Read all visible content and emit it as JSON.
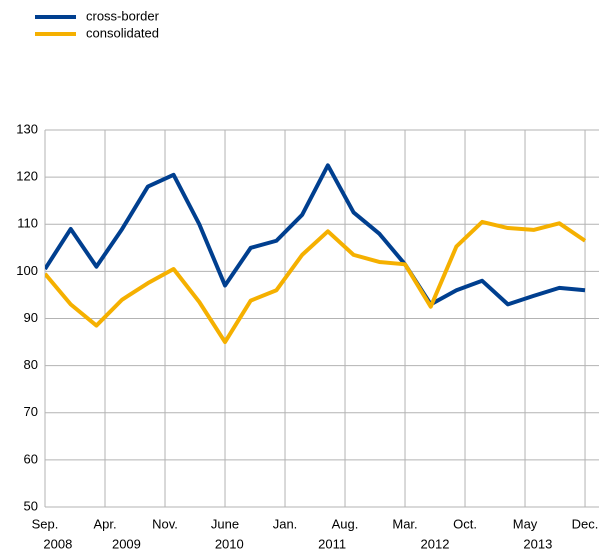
{
  "chart_data": {
    "type": "line",
    "x": [
      "2008-09",
      "2008-12",
      "2009-03",
      "2009-06",
      "2009-09",
      "2009-12",
      "2010-03",
      "2010-06",
      "2010-09",
      "2010-12",
      "2011-03",
      "2011-06",
      "2011-09",
      "2011-12",
      "2012-03",
      "2012-06",
      "2012-09",
      "2012-12",
      "2013-03",
      "2013-06",
      "2013-09",
      "2013-12"
    ],
    "series": [
      {
        "name": "cross-border",
        "color": "#003f8f",
        "values": [
          100.5,
          109,
          101,
          109,
          118,
          120.5,
          110,
          97,
          105,
          106.5,
          112,
          122.5,
          112.5,
          108,
          101.5,
          93,
          96,
          98,
          93,
          94.8,
          96.5,
          96
        ]
      },
      {
        "name": "consolidated",
        "color": "#f5b000",
        "values": [
          99.5,
          93,
          88.5,
          94,
          97.5,
          100.5,
          93.5,
          85,
          93.8,
          96,
          103.5,
          108.5,
          103.5,
          102,
          101.5,
          92.5,
          105.3,
          110.5,
          109.2,
          108.8,
          110.2,
          106.5
        ]
      }
    ],
    "xlim": [
      "2008-09",
      "2014-01"
    ],
    "xticks": [
      {
        "value": "2008-09",
        "label": "Sep."
      },
      {
        "value": "2009-04",
        "label": "Apr."
      },
      {
        "value": "2009-11",
        "label": "Nov."
      },
      {
        "value": "2010-06",
        "label": "June"
      },
      {
        "value": "2011-01",
        "label": "Jan."
      },
      {
        "value": "2011-08",
        "label": "Aug."
      },
      {
        "value": "2012-03",
        "label": "Mar."
      },
      {
        "value": "2012-10",
        "label": "Oct."
      },
      {
        "value": "2013-05",
        "label": "May"
      },
      {
        "value": "2013-12",
        "label": "Dec."
      }
    ],
    "years": [
      "2008",
      "2009",
      "2010",
      "2011",
      "2012",
      "2013"
    ],
    "ylim": [
      50,
      130
    ],
    "yticks": [
      50,
      60,
      70,
      80,
      90,
      100,
      110,
      120,
      130
    ],
    "grid": true,
    "legend": "top-left"
  }
}
